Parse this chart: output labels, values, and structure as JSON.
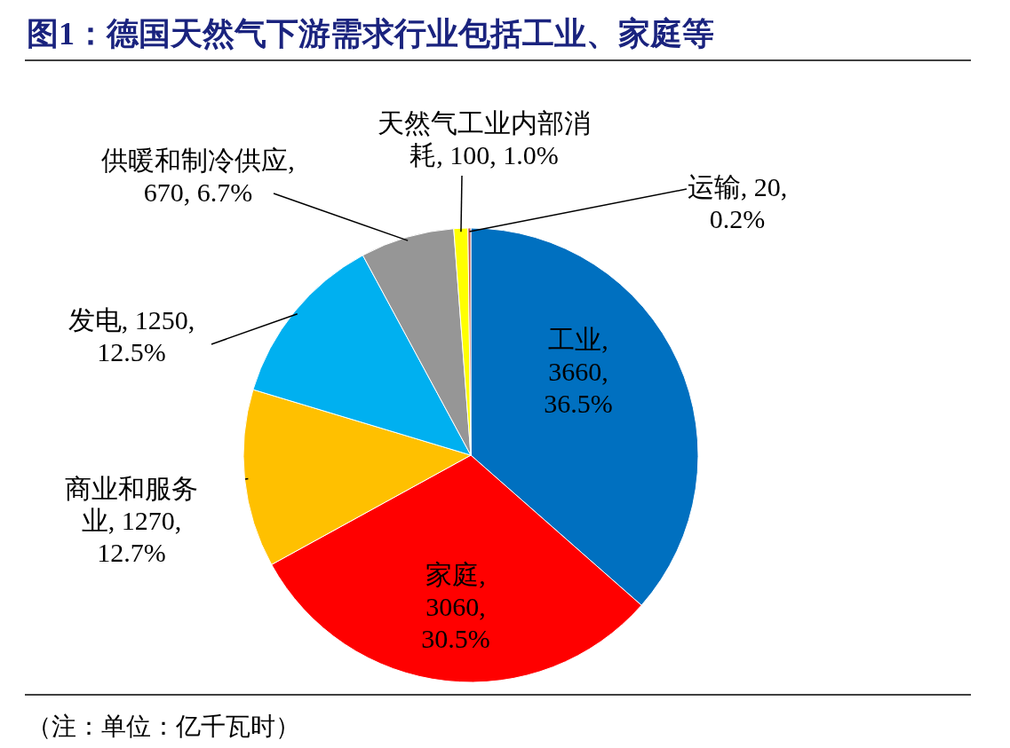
{
  "chart_data": {
    "type": "pie",
    "title": "图1：德国天然气下游需求行业包括工业、家庭等",
    "categories": [
      "工业",
      "家庭",
      "商业和服务业",
      "发电",
      "供暖和制冷供应",
      "天然气工业内部消耗",
      "运输"
    ],
    "values": [
      3660,
      3060,
      1270,
      1250,
      670,
      100,
      20
    ],
    "value_labels": [
      ", 3660, 36.5%",
      ", 3060, 30.5%",
      ", 1270, 12.7%",
      ", 1250, 12.5%",
      ", 670, 6.7%",
      ", 100, 1.0%",
      ", 20, 0.2%"
    ],
    "colors": [
      "#0070c0",
      "#ff0000",
      "#ffc000",
      "#00b0f0",
      "#969696",
      "#ffff00",
      "#c0504d"
    ],
    "annotations": [
      "（注：单位：亿千瓦时）"
    ]
  }
}
